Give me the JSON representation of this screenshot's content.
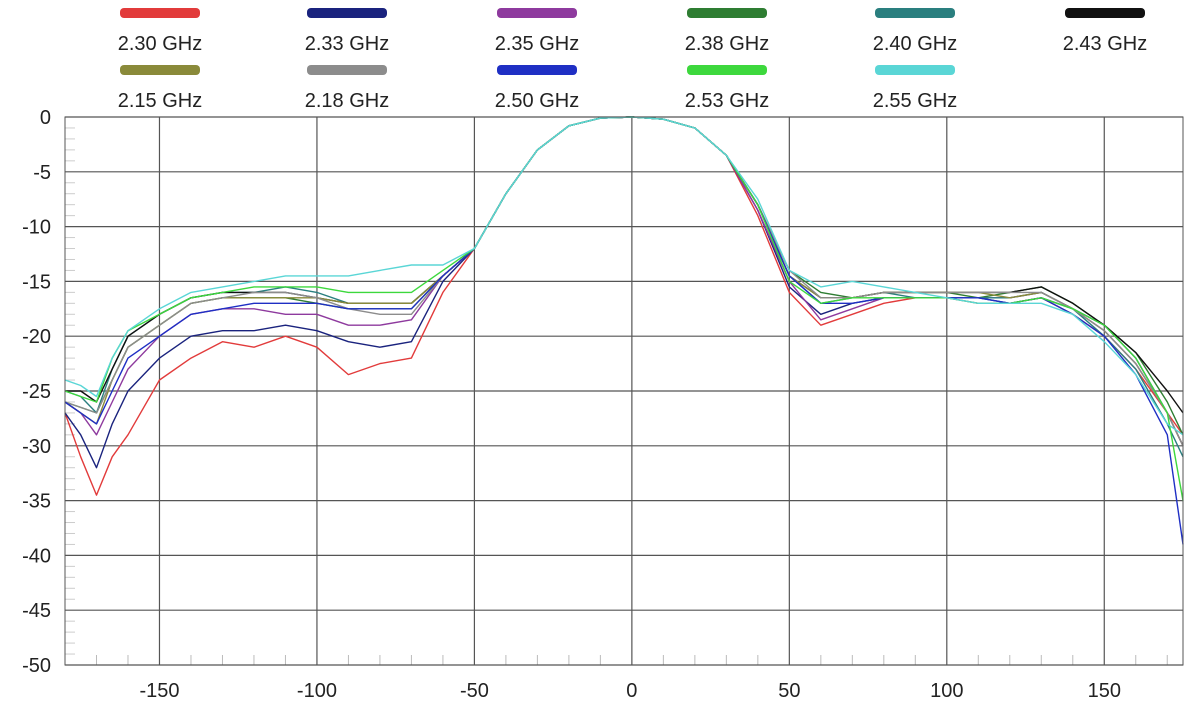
{
  "chart_data": {
    "type": "line",
    "title": "",
    "xlabel": "",
    "ylabel": "",
    "xlim": [
      -180,
      175
    ],
    "ylim": [
      -50,
      0
    ],
    "xticks": [
      -150,
      -100,
      -50,
      0,
      50,
      100,
      150
    ],
    "yticks": [
      0,
      -5,
      -10,
      -15,
      -20,
      -25,
      -30,
      -35,
      -40,
      -45,
      -50
    ],
    "grid": true,
    "legend_position": "top",
    "x": [
      -180,
      -175,
      -170,
      -165,
      -160,
      -150,
      -140,
      -130,
      -120,
      -110,
      -100,
      -90,
      -80,
      -70,
      -60,
      -50,
      -40,
      -30,
      -20,
      -10,
      0,
      10,
      20,
      30,
      40,
      50,
      60,
      70,
      80,
      90,
      100,
      110,
      120,
      130,
      140,
      150,
      160,
      170,
      175
    ],
    "series": [
      {
        "name": "2.30 GHz",
        "color": "#e23b3b",
        "values": [
          -27,
          -31,
          -34.5,
          -31,
          -29,
          -24,
          -22,
          -20.5,
          -21,
          -20,
          -21,
          -23.5,
          -22.5,
          -22,
          -16,
          -12,
          -7,
          -3,
          -0.8,
          -0.1,
          0,
          -0.2,
          -1,
          -3.5,
          -9,
          -16,
          -19,
          -18,
          -17,
          -16.5,
          -16.5,
          -17,
          -17,
          -16.5,
          -18,
          -20,
          -23,
          -27,
          -29
        ]
      },
      {
        "name": "2.33 GHz",
        "color": "#1a237e",
        "values": [
          -27,
          -29,
          -32,
          -28,
          -25,
          -22,
          -20,
          -19.5,
          -19.5,
          -19,
          -19.5,
          -20.5,
          -21,
          -20.5,
          -15,
          -12,
          -7,
          -3,
          -0.8,
          -0.1,
          0,
          -0.2,
          -1,
          -3.5,
          -8.5,
          -15.5,
          -18,
          -17,
          -16.5,
          -16.5,
          -16.5,
          -16.5,
          -17,
          -16.5,
          -17.5,
          -19,
          -22,
          -27,
          -30
        ]
      },
      {
        "name": "2.35 GHz",
        "color": "#8e3a9e",
        "values": [
          -26,
          -27,
          -29,
          -26,
          -23,
          -20,
          -18,
          -17.5,
          -17.5,
          -18,
          -18,
          -19,
          -19,
          -18.5,
          -14.5,
          -12,
          -7,
          -3,
          -0.8,
          -0.1,
          0,
          -0.2,
          -1,
          -3.5,
          -8.5,
          -15,
          -18.5,
          -17.5,
          -16.5,
          -16.5,
          -16.5,
          -16.5,
          -16.5,
          -16,
          -17.5,
          -19.5,
          -22.5,
          -27,
          -30
        ]
      },
      {
        "name": "2.38 GHz",
        "color": "#2e7d32",
        "values": [
          -26,
          -26.5,
          -27,
          -24,
          -21,
          -19,
          -17,
          -16.5,
          -16.5,
          -16.5,
          -17,
          -17.5,
          -17.5,
          -17.5,
          -14.5,
          -12,
          -7,
          -3,
          -0.8,
          -0.1,
          0,
          -0.2,
          -1,
          -3.5,
          -8,
          -14,
          -16,
          -16.5,
          -16,
          -16,
          -16,
          -16.5,
          -16,
          -15.5,
          -17,
          -19,
          -21.5,
          -26,
          -29
        ]
      },
      {
        "name": "2.40 GHz",
        "color": "#2a7f7f",
        "values": [
          -25,
          -25.5,
          -27,
          -23,
          -20,
          -18,
          -16.5,
          -16,
          -16,
          -15.5,
          -16,
          -17,
          -17,
          -17,
          -14.5,
          -12,
          -7,
          -3,
          -0.8,
          -0.1,
          0,
          -0.2,
          -1,
          -3.5,
          -8,
          -14.5,
          -17,
          -16.5,
          -16,
          -16.5,
          -16.5,
          -16.5,
          -16.5,
          -16,
          -17.5,
          -20,
          -23,
          -28,
          -31
        ]
      },
      {
        "name": "2.43 GHz",
        "color": "#111111",
        "values": [
          -25,
          -25,
          -26,
          -23,
          -20,
          -18,
          -16.5,
          -16,
          -16,
          -16,
          -16.5,
          -17,
          -17,
          -17,
          -14.5,
          -12,
          -7,
          -3,
          -0.8,
          -0.1,
          0,
          -0.2,
          -1,
          -3.5,
          -8,
          -14.5,
          -16.5,
          -16.5,
          -16,
          -16,
          -16,
          -16,
          -16,
          -15.5,
          -17,
          -19,
          -21.5,
          -25,
          -27
        ]
      },
      {
        "name": "2.15 GHz",
        "color": "#8a8a3a",
        "values": [
          -26,
          -27,
          -28,
          -24,
          -21,
          -19,
          -17,
          -16.5,
          -16.5,
          -16.5,
          -16.5,
          -17,
          -17,
          -17,
          -14.5,
          -12,
          -7,
          -3,
          -0.8,
          -0.1,
          0,
          -0.2,
          -1,
          -3.5,
          -8,
          -14.5,
          -16.5,
          -16.5,
          -16,
          -16,
          -16,
          -16,
          -16.5,
          -16,
          -17.5,
          -19.5,
          -22.5,
          -27,
          -30
        ]
      },
      {
        "name": "2.18 GHz",
        "color": "#8c8c8c",
        "values": [
          -26,
          -26.5,
          -27,
          -24,
          -21,
          -19,
          -17,
          -16.5,
          -16,
          -16,
          -16.5,
          -17.5,
          -18,
          -18,
          -14.5,
          -12,
          -7,
          -3,
          -0.8,
          -0.1,
          0,
          -0.2,
          -1,
          -3.5,
          -8,
          -14,
          -16.5,
          -16.5,
          -16,
          -16,
          -16,
          -16,
          -16,
          -16,
          -17.5,
          -19.5,
          -22.5,
          -27,
          -30
        ]
      },
      {
        "name": "2.50 GHz",
        "color": "#1f2fc4",
        "values": [
          -26,
          -27,
          -28,
          -25,
          -22,
          -20,
          -18,
          -17.5,
          -17,
          -17,
          -17,
          -17.5,
          -17.5,
          -17.5,
          -14.5,
          -12,
          -7,
          -3,
          -0.8,
          -0.1,
          0,
          -0.2,
          -1,
          -3.5,
          -8,
          -14.5,
          -17,
          -17,
          -16.5,
          -16.5,
          -16.5,
          -16.5,
          -17,
          -16.5,
          -18,
          -20,
          -23.5,
          -29,
          -39
        ]
      },
      {
        "name": "2.53 GHz",
        "color": "#3dd83d",
        "values": [
          -25,
          -25.5,
          -26,
          -22,
          -19.5,
          -18,
          -16.5,
          -16,
          -15.5,
          -15.5,
          -15.5,
          -16,
          -16,
          -16,
          -14,
          -12,
          -7,
          -3,
          -0.8,
          -0.1,
          0,
          -0.2,
          -1,
          -3.5,
          -8,
          -15,
          -17,
          -16.5,
          -16.5,
          -16.5,
          -16.5,
          -17,
          -17,
          -16.5,
          -17.5,
          -19,
          -22,
          -27,
          -35
        ]
      },
      {
        "name": "2.55 GHz",
        "color": "#5ad6d6",
        "values": [
          -24,
          -24.5,
          -25.5,
          -22,
          -19.5,
          -17.5,
          -16,
          -15.5,
          -15,
          -14.5,
          -14.5,
          -14.5,
          -14,
          -13.5,
          -13.5,
          -12,
          -7,
          -3,
          -0.8,
          -0.1,
          0,
          -0.2,
          -1,
          -3.5,
          -7.5,
          -14,
          -15.5,
          -15,
          -15.5,
          -16,
          -16.5,
          -17,
          -17,
          -17,
          -18,
          -20.5,
          -23.5,
          -28,
          -29
        ]
      }
    ]
  }
}
